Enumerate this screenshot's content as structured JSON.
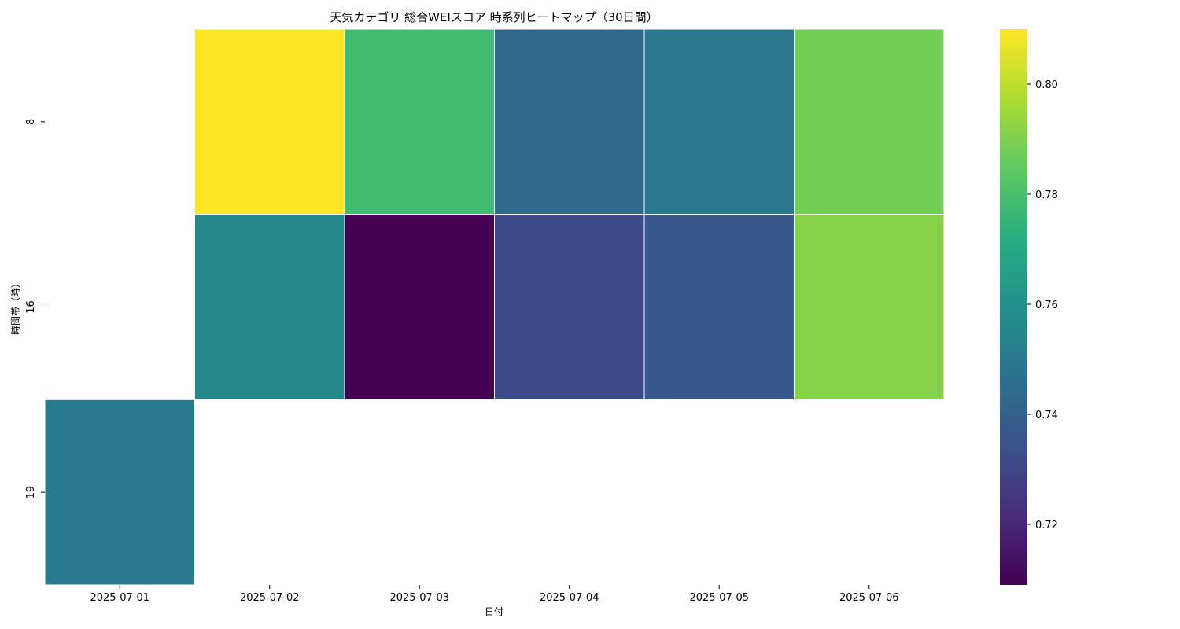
{
  "chart_data": {
    "type": "heatmap",
    "title": "天気カテゴリ 総合WEIスコア 時系列ヒートマップ（30日間）",
    "xlabel": "日付",
    "ylabel": "時間帯（時）",
    "x_categories": [
      "2025-07-01",
      "2025-07-02",
      "2025-07-03",
      "2025-07-04",
      "2025-07-05",
      "2025-07-06"
    ],
    "y_categories": [
      "8",
      "16",
      "19"
    ],
    "values": [
      [
        null,
        0.81,
        0.778,
        0.743,
        0.75,
        0.788
      ],
      [
        null,
        0.756,
        0.709,
        0.732,
        0.737,
        0.791
      ],
      [
        0.75,
        null,
        null,
        null,
        null,
        null
      ]
    ],
    "colorscale": "viridis",
    "vmin": 0.709,
    "vmax": 0.81,
    "colorbar_ticks": [
      "0.72",
      "0.74",
      "0.76",
      "0.78",
      "0.80"
    ],
    "grid": false,
    "missing_color": "#ffffff",
    "cell_border_color": "#ffffff"
  }
}
